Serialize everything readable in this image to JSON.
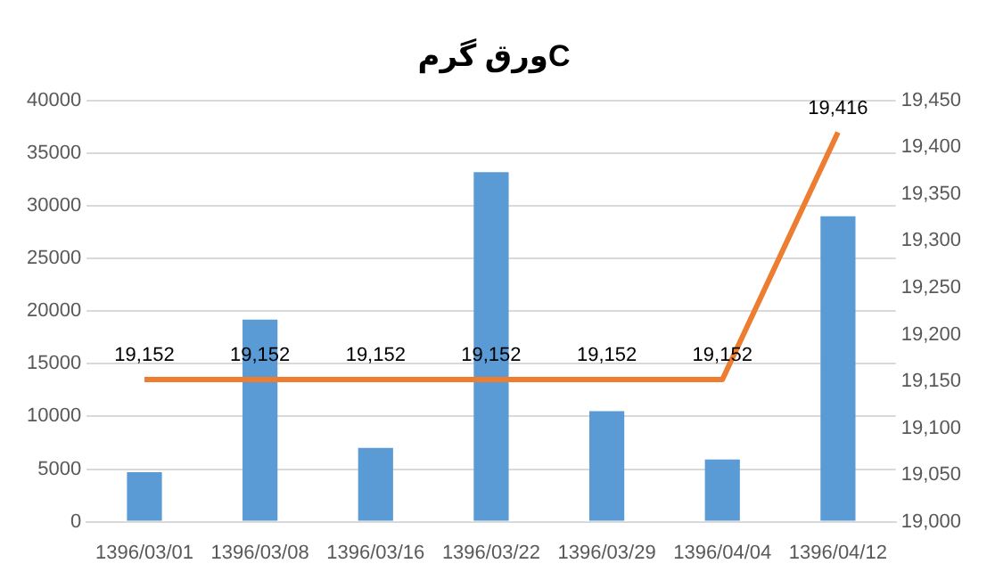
{
  "chart_data": {
    "type": "bar",
    "title": "ورق گرمC",
    "categories": [
      "1396/03/01",
      "1396/03/08",
      "1396/03/16",
      "1396/03/22",
      "1396/03/29",
      "1396/04/04",
      "1396/04/12"
    ],
    "series": [
      {
        "color": "#5b9bd5",
        "values": [
          4700,
          19200,
          7000,
          33200,
          10500,
          5900,
          29000
        ]
      },
      {
        "type": "line",
        "axis": "y2",
        "color": "#ed7d31",
        "values": [
          19152,
          19152,
          19152,
          19152,
          19152,
          19152,
          19416
        ],
        "value_labels": [
          "19,152",
          "19,152",
          "19,152",
          "19,152",
          "19,152",
          "19,152",
          "19,416"
        ]
      }
    ],
    "ylim": [
      0,
      40000
    ],
    "yticks": [
      0,
      5000,
      10000,
      15000,
      20000,
      25000,
      30000,
      35000,
      40000
    ],
    "y2lim": [
      19000,
      19450
    ],
    "y2ticks": [
      {
        "value": 19000,
        "label": "19,000"
      },
      {
        "value": 19050,
        "label": "19,050"
      },
      {
        "value": 19100,
        "label": "19,100"
      },
      {
        "value": 19150,
        "label": "19,150"
      },
      {
        "value": 19200,
        "label": "19,200"
      },
      {
        "value": 19250,
        "label": "19,250"
      },
      {
        "value": 19300,
        "label": "19,300"
      },
      {
        "value": 19350,
        "label": "19,350"
      },
      {
        "value": 19400,
        "label": "19,400"
      },
      {
        "value": 19450,
        "label": "19,450"
      }
    ],
    "grid": "y",
    "legend": false,
    "marker": "none",
    "line_style": "solid"
  }
}
